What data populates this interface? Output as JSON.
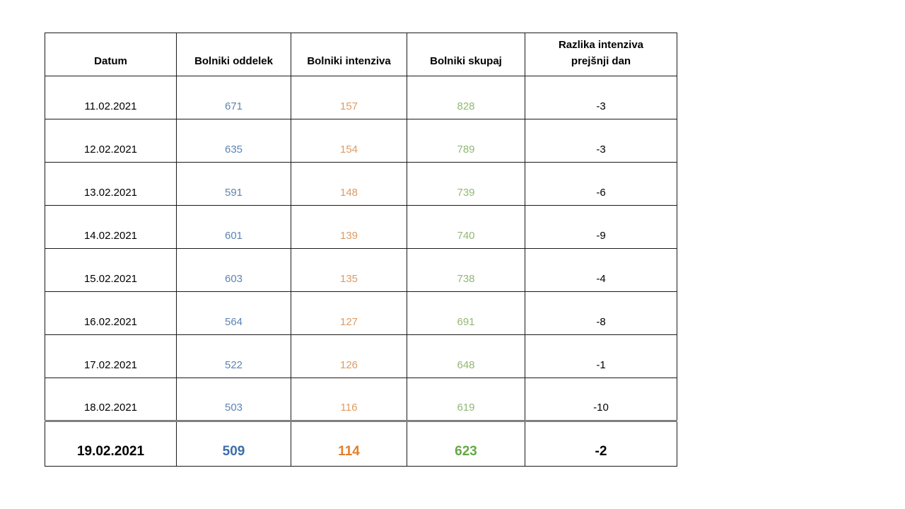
{
  "chart_data": {
    "type": "table",
    "columns": [
      {
        "key": "datum",
        "label": "Datum"
      },
      {
        "key": "oddelek",
        "label": "Bolniki oddelek"
      },
      {
        "key": "intenziva",
        "label": "Bolniki intenziva"
      },
      {
        "key": "skupaj",
        "label": "Bolniki skupaj"
      },
      {
        "key": "razlika",
        "label": "Razlika intenziva prejšnji dan"
      }
    ],
    "rows": [
      {
        "cells": [
          "11.02.2021",
          "671",
          "157",
          "828",
          "-3"
        ],
        "emphasis": false
      },
      {
        "cells": [
          "12.02.2021",
          "635",
          "154",
          "789",
          "-3"
        ],
        "emphasis": false
      },
      {
        "cells": [
          "13.02.2021",
          "591",
          "148",
          "739",
          "-6"
        ],
        "emphasis": false
      },
      {
        "cells": [
          "14.02.2021",
          "601",
          "139",
          "740",
          "-9"
        ],
        "emphasis": false
      },
      {
        "cells": [
          "15.02.2021",
          "603",
          "135",
          "738",
          "-4"
        ],
        "emphasis": false
      },
      {
        "cells": [
          "16.02.2021",
          "564",
          "127",
          "691",
          "-8"
        ],
        "emphasis": false
      },
      {
        "cells": [
          "17.02.2021",
          "522",
          "126",
          "648",
          "-1"
        ],
        "emphasis": false
      },
      {
        "cells": [
          "18.02.2021",
          "503",
          "116",
          "619",
          "-10"
        ],
        "emphasis": false
      },
      {
        "cells": [
          "19.02.2021",
          "509",
          "114",
          "623",
          "-2"
        ],
        "emphasis": true
      }
    ],
    "categories": [
      "11.02.2021",
      "12.02.2021",
      "13.02.2021",
      "14.02.2021",
      "15.02.2021",
      "16.02.2021",
      "17.02.2021",
      "18.02.2021",
      "19.02.2021"
    ],
    "series": [
      {
        "name": "Bolniki oddelek",
        "values": [
          671,
          635,
          591,
          601,
          603,
          564,
          522,
          503,
          509
        ]
      },
      {
        "name": "Bolniki intenziva",
        "values": [
          157,
          154,
          148,
          139,
          135,
          127,
          126,
          116,
          114
        ]
      },
      {
        "name": "Bolniki skupaj",
        "values": [
          828,
          789,
          739,
          740,
          738,
          691,
          648,
          619,
          623
        ]
      },
      {
        "name": "Razlika intenziva prejšnji dan",
        "values": [
          -3,
          -3,
          -6,
          -9,
          -4,
          -8,
          -1,
          -10,
          -2
        ]
      }
    ],
    "title": "",
    "legend_position": "none",
    "grid": true
  },
  "colors": {
    "text": "#000000",
    "grid": "#1a1a1a",
    "thick_divider": "#7f7f7f",
    "oddelek": "#5d84b4",
    "intenziva": "#dd9b65",
    "skupaj": "#92b873",
    "oddelek_bold": "#3c6da8",
    "intenziva_bold": "#e0812c",
    "skupaj_bold": "#65a846"
  }
}
